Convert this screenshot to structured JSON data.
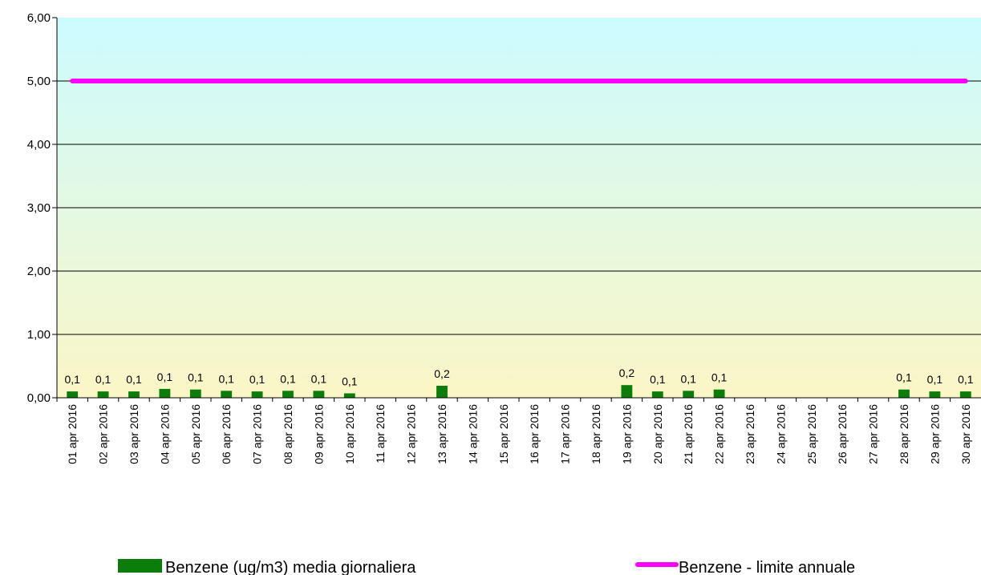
{
  "chart_data": {
    "type": "bar",
    "categories": [
      "01 apr 2016",
      "02 apr 2016",
      "03 apr 2016",
      "04 apr 2016",
      "05 apr 2016",
      "06 apr 2016",
      "07 apr 2016",
      "08 apr 2016",
      "09 apr 2016",
      "10 apr 2016",
      "11 apr 2016",
      "12 apr 2016",
      "13 apr 2016",
      "14 apr 2016",
      "15 apr 2016",
      "16 apr 2016",
      "17 apr 2016",
      "18 apr 2016",
      "19 apr 2016",
      "20 apr 2016",
      "21 apr 2016",
      "22 apr 2016",
      "23 apr 2016",
      "24 apr 2016",
      "25 apr 2016",
      "26 apr 2016",
      "27 apr 2016",
      "28 apr 2016",
      "29 apr 2016",
      "30 apr 2016"
    ],
    "series": [
      {
        "name": "Benzene (ug/m3) media giornaliera",
        "kind": "bar",
        "color": "#0b7d0b",
        "values": [
          0.1,
          0.1,
          0.1,
          0.14,
          0.13,
          0.11,
          0.1,
          0.11,
          0.11,
          0.07,
          null,
          null,
          0.19,
          null,
          null,
          null,
          null,
          null,
          0.2,
          0.1,
          0.11,
          0.13,
          null,
          null,
          null,
          null,
          null,
          0.13,
          0.1,
          0.1
        ],
        "labels": [
          "0,1",
          "0,1",
          "0,1",
          "0,1",
          "0,1",
          "0,1",
          "0,1",
          "0,1",
          "0,1",
          "0,1",
          "",
          "",
          "0,2",
          "",
          "",
          "",
          "",
          "",
          "0,2",
          "0,1",
          "0,1",
          "0,1",
          "",
          "",
          "",
          "",
          "",
          "0,1",
          "0,1",
          "0,1"
        ]
      },
      {
        "name": "Benzene - limite annuale",
        "kind": "line",
        "color": "#ff00ff",
        "values": [
          5,
          5,
          5,
          5,
          5,
          5,
          5,
          5,
          5,
          5,
          5,
          5,
          5,
          5,
          5,
          5,
          5,
          5,
          5,
          5,
          5,
          5,
          5,
          5,
          5,
          5,
          5,
          5,
          5,
          5
        ]
      }
    ],
    "ylim": [
      0,
      6
    ],
    "yticks": [
      "0,00",
      "1,00",
      "2,00",
      "3,00",
      "4,00",
      "5,00",
      "6,00"
    ],
    "grid": true,
    "legend": "bottom",
    "background_gradient": [
      "#ccfbff",
      "#fbf6c6"
    ]
  }
}
